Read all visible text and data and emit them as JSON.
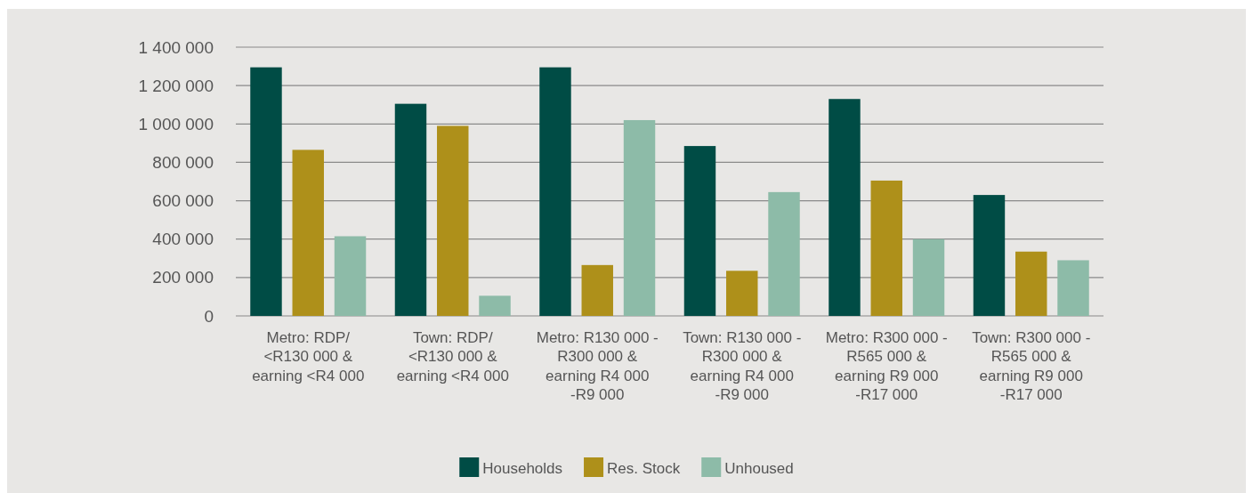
{
  "chart_data": {
    "type": "bar",
    "categories": [
      "Metro: RDP/ <R130 000 & earning <R4 000",
      "Town: RDP/ <R130 000 & earning <R4 000",
      "Metro: R130 000 - R300 000 & earning R4 000 -R9 000",
      "Town: R130 000 - R300 000 & earning R4 000 -R9 000",
      "Metro: R300 000 - R565 000 & earning R9 000 -R17 000",
      "Town: R300 000 - R565 000 & earning R9 000 -R17 000"
    ],
    "series": [
      {
        "name": "Households",
        "color": "#004c45",
        "values": [
          1295000,
          1105000,
          1295000,
          885000,
          1130000,
          630000
        ]
      },
      {
        "name": "Res. Stock",
        "color": "#ae901a",
        "values": [
          865000,
          990000,
          265000,
          235000,
          705000,
          335000
        ]
      },
      {
        "name": "Unhoused",
        "color": "#8dbba8",
        "values": [
          415000,
          105000,
          1020000,
          645000,
          400000,
          290000
        ]
      }
    ],
    "ylim": [
      0,
      1400000
    ],
    "yticks": [
      {
        "value": 0,
        "label": "0"
      },
      {
        "value": 200000,
        "label": "200 000"
      },
      {
        "value": 400000,
        "label": "400 000"
      },
      {
        "value": 600000,
        "label": "600 000"
      },
      {
        "value": 800000,
        "label": "800 000"
      },
      {
        "value": 1000000,
        "label": "1 000 000"
      },
      {
        "value": 1200000,
        "label": "1 200 000"
      },
      {
        "value": 1400000,
        "label": "1 400 000"
      }
    ],
    "grid": "y",
    "legend": "bottom"
  }
}
